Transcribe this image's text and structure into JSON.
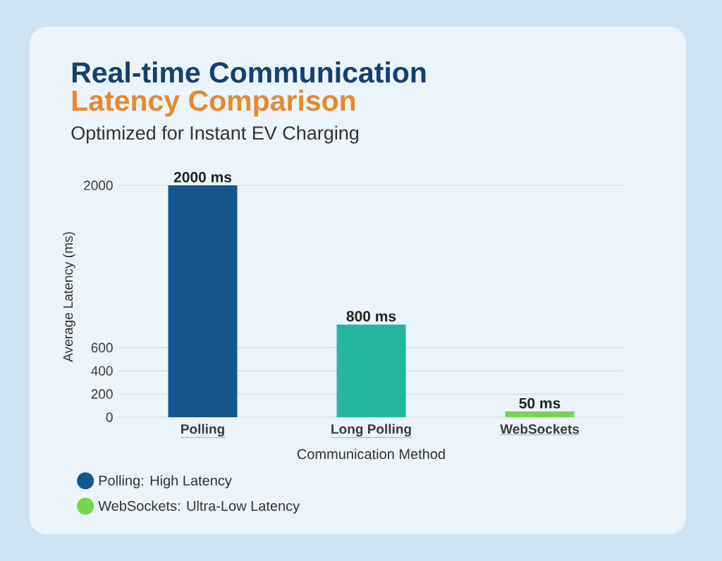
{
  "chart_data": {
    "type": "bar",
    "title": "Real-time Communication",
    "subtitle": "Latency Comparison",
    "annotations": [
      "Optimized for Instant EV Charging"
    ],
    "xlabel": "Communication Method",
    "ylabel": "Average Latency (ms)",
    "categories": [
      "Polling",
      "Long Polling",
      "WebSockets"
    ],
    "series": [
      {
        "name": "Polling: High Latency",
        "color": "#14568f",
        "values": [
          2000,
          null,
          null
        ],
        "value_labels": [
          "2000 ms",
          null,
          null
        ]
      },
      {
        "color": "#22b6a0",
        "values": [
          null,
          800,
          null
        ],
        "value_labels": [
          null,
          "800 ms",
          null
        ]
      },
      {
        "name": "WebSockets: Ultra-Low Latency",
        "color": "#72d64e",
        "values": [
          null,
          null,
          50
        ],
        "value_labels": [
          null,
          null,
          "50 ms"
        ]
      }
    ],
    "ylim": [
      0,
      2000
    ],
    "yticks": [
      0,
      200,
      400,
      600,
      2000
    ],
    "grid": "y",
    "legend": "bottom left"
  }
}
